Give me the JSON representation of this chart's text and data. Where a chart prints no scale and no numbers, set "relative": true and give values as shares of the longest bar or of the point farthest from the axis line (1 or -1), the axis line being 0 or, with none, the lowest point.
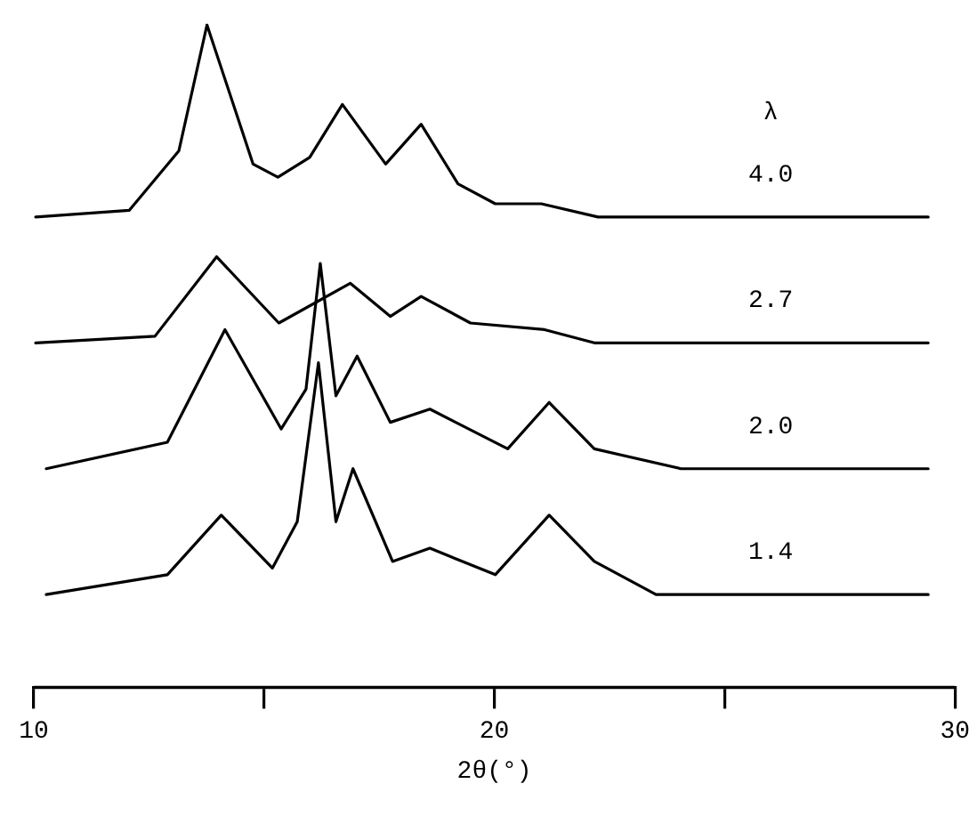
{
  "chart_data": {
    "type": "line",
    "relative": true,
    "xlabel": "2θ(°)",
    "legend_title": "λ",
    "xlim": [
      10,
      30
    ],
    "xticks": [
      10,
      {
        "value": 15,
        "label": null
      },
      20,
      {
        "value": 25,
        "label": null
      },
      30
    ],
    "grid": false,
    "legend": false,
    "marker": "none",
    "line_style": "solid",
    "series": [
      {
        "name": "4.0",
        "color": "#000000",
        "x": [
          10.04,
          12.07,
          13.15,
          13.76,
          14.38,
          14.76,
          15.3,
          15.99,
          16.7,
          17.64,
          18.41,
          19.21,
          20.02,
          21.02,
          22.25,
          25.39,
          29.42
        ],
        "values": [
          0.71,
          0.72,
          0.81,
          1.0,
          0.87,
          0.79,
          0.77,
          0.8,
          0.88,
          0.79,
          0.85,
          0.76,
          0.73,
          0.73,
          0.71,
          0.71,
          0.71
        ]
      },
      {
        "name": "2.7",
        "color": "#000000",
        "x": [
          10.04,
          12.63,
          13.97,
          15.32,
          16.87,
          17.74,
          18.41,
          19.48,
          21.09,
          22.17,
          25.39,
          29.42
        ],
        "values": [
          0.52,
          0.53,
          0.65,
          0.55,
          0.61,
          0.56,
          0.59,
          0.55,
          0.54,
          0.52,
          0.52,
          0.52
        ]
      },
      {
        "name": "2.0",
        "color": "#000000",
        "x": [
          10.27,
          12.9,
          14.15,
          15.37,
          15.91,
          16.22,
          16.56,
          17.02,
          17.74,
          18.6,
          20.29,
          21.19,
          22.17,
          24.05,
          29.42
        ],
        "values": [
          0.33,
          0.37,
          0.54,
          0.39,
          0.45,
          0.64,
          0.44,
          0.5,
          0.4,
          0.42,
          0.36,
          0.43,
          0.36,
          0.33,
          0.33
        ]
      },
      {
        "name": "1.4",
        "color": "#000000",
        "x": [
          10.27,
          12.9,
          14.07,
          15.18,
          15.72,
          16.18,
          16.56,
          16.93,
          17.79,
          18.6,
          20.02,
          21.19,
          22.17,
          23.51,
          25.39,
          29.42
        ],
        "values": [
          0.14,
          0.17,
          0.26,
          0.18,
          0.25,
          0.49,
          0.25,
          0.33,
          0.19,
          0.21,
          0.17,
          0.26,
          0.19,
          0.14,
          0.14,
          0.14
        ]
      }
    ]
  }
}
